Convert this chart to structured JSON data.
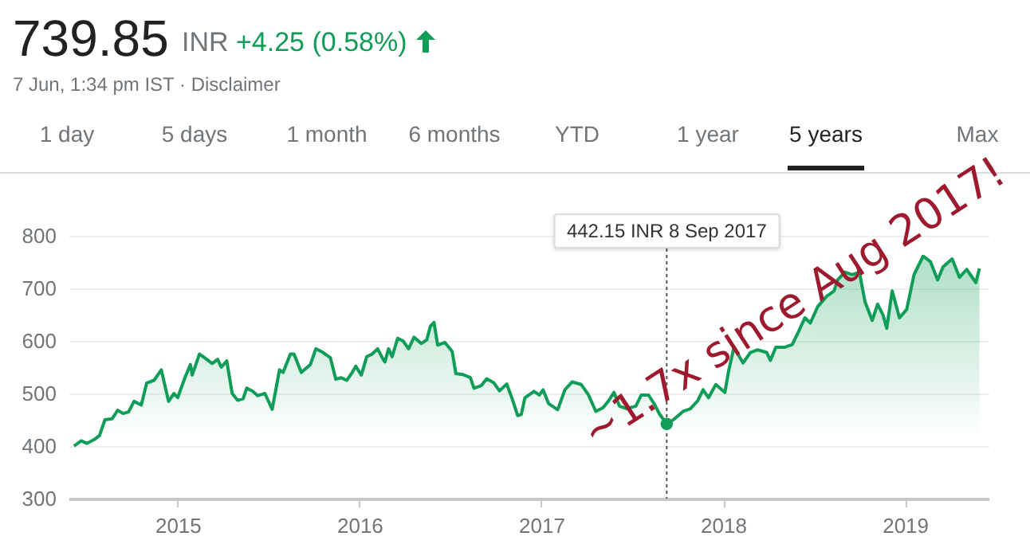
{
  "chart_data": {
    "type": "area",
    "title": "739.85",
    "subtitle": "INR +4.25 (0.58%)",
    "annotations": [
      "7 Jun, 1:34 pm IST · Disclaimer",
      "1 day",
      "5 days",
      "1 month",
      "6 months",
      "YTD",
      "1 year",
      "5 years",
      "Max",
      "~1.7x since Aug 2017!",
      "442.15 INR  8 Sep 2017"
    ],
    "x": [
      2014.43,
      2014.47,
      2014.5,
      2014.54,
      2014.57,
      2014.6,
      2014.64,
      2014.67,
      2014.7,
      2014.73,
      2014.76,
      2014.8,
      2014.83,
      2014.87,
      2014.91,
      2014.95,
      2014.98,
      2015.0,
      2015.04,
      2015.07,
      2015.08,
      2015.12,
      2015.16,
      2015.19,
      2015.22,
      2015.24,
      2015.27,
      2015.3,
      2015.33,
      2015.36,
      2015.38,
      2015.41,
      2015.44,
      2015.48,
      2015.52,
      2015.56,
      2015.58,
      2015.62,
      2015.64,
      2015.68,
      2015.73,
      2015.76,
      2015.8,
      2015.84,
      2015.87,
      2015.9,
      2015.93,
      2015.96,
      2015.98,
      2016.01,
      2016.04,
      2016.07,
      2016.1,
      2016.13,
      2016.14,
      2016.16,
      2016.18,
      2016.21,
      2016.24,
      2016.27,
      2016.3,
      2016.34,
      2016.37,
      2016.39,
      2016.41,
      2016.43,
      2016.47,
      2016.51,
      2016.53,
      2016.57,
      2016.61,
      2016.63,
      2016.67,
      2016.7,
      2016.74,
      2016.77,
      2016.81,
      2016.84,
      2016.87,
      2016.89,
      2016.91,
      2016.96,
      2016.99,
      2017.01,
      2017.04,
      2017.09,
      2017.13,
      2017.17,
      2017.22,
      2017.26,
      2017.3,
      2017.34,
      2017.37,
      2017.4,
      2017.43,
      2017.47,
      2017.52,
      2017.55,
      2017.59,
      2017.62,
      2017.65,
      2017.69,
      2017.73,
      2017.78,
      2017.82,
      2017.86,
      2017.89,
      2017.92,
      2017.96,
      2018.01,
      2018.03,
      2018.06,
      2018.11,
      2018.15,
      2018.19,
      2018.24,
      2018.26,
      2018.29,
      2018.34,
      2018.38,
      2018.41,
      2018.45,
      2018.48,
      2018.52,
      2018.57,
      2018.61,
      2018.63,
      2018.67,
      2018.71,
      2018.75,
      2018.78,
      2018.82,
      2018.85,
      2018.88,
      2018.9,
      2018.93,
      2018.97,
      2019.01,
      2019.05,
      2019.1,
      2019.14,
      2019.18,
      2019.21,
      2019.26,
      2019.3,
      2019.34,
      2019.39,
      2019.41
    ],
    "series": [
      {
        "color": "#0f9d58",
        "values": [
          400,
          410,
          405,
          412,
          420,
          450,
          452,
          468,
          462,
          465,
          485,
          478,
          520,
          525,
          545,
          485,
          500,
          492,
          530,
          555,
          535,
          575,
          565,
          557,
          565,
          550,
          562,
          500,
          487,
          490,
          510,
          505,
          496,
          500,
          470,
          545,
          540,
          575,
          575,
          540,
          555,
          585,
          578,
          568,
          527,
          530,
          525,
          540,
          552,
          535,
          570,
          575,
          585,
          565,
          560,
          585,
          570,
          605,
          600,
          585,
          607,
          595,
          602,
          628,
          635,
          592,
          597,
          580,
          538,
          536,
          530,
          510,
          515,
          528,
          520,
          505,
          518,
          490,
          458,
          460,
          492,
          504,
          497,
          507,
          481,
          469,
          507,
          522,
          517,
          497,
          466,
          473,
          486,
          502,
          476,
          471,
          476,
          497,
          497,
          481,
          461,
          442,
          451,
          466,
          471,
          486,
          507,
          492,
          517,
          502,
          542,
          588,
          558,
          578,
          583,
          578,
          563,
          588,
          588,
          593,
          614,
          644,
          634,
          665,
          685,
          695,
          716,
          731,
          726,
          731,
          675,
          639,
          670,
          649,
          624,
          695,
          644,
          660,
          726,
          761,
          751,
          716,
          741,
          756,
          721,
          736,
          711,
          738
        ]
      }
    ],
    "xlim": [
      2014.4,
      2019.46
    ],
    "ylim": [
      300,
      800
    ],
    "xticks": [
      2015,
      2016,
      2017,
      2018,
      2019
    ],
    "yticks": [
      300,
      400,
      500,
      600,
      700,
      800
    ],
    "grid": "y",
    "ref_lines": [
      {
        "axis": "x",
        "value": 2017.69,
        "line_style": "dotted",
        "color": "#555555"
      }
    ]
  }
}
